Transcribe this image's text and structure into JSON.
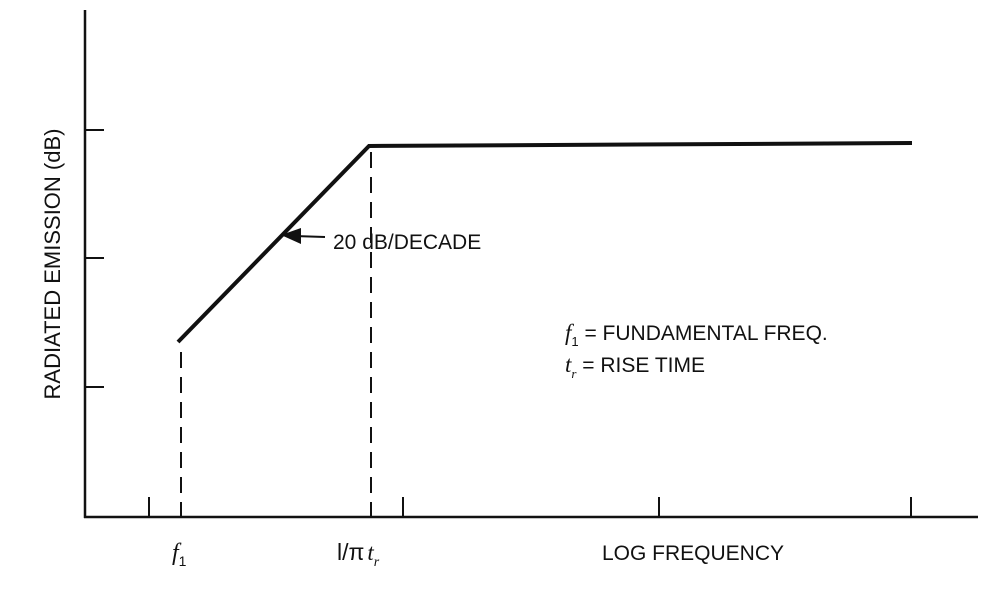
{
  "chart_data": {
    "type": "line",
    "ylabel": "RADIATED EMISSION (dB)",
    "xlabel": "LOG FREQUENCY",
    "x_ticks": {
      "f1": {
        "main": "f",
        "sub": "1"
      },
      "corner": {
        "main": "l/π",
        "ital": "t",
        "sub": "r"
      }
    },
    "slope_annotation": "20 dB/DECADE",
    "legend": {
      "line1": {
        "sym": "f",
        "sub": "1",
        "text": " = FUNDAMENTAL FREQ."
      },
      "line2": {
        "sym": "t",
        "sub": "r",
        "text": " = RISE TIME"
      }
    },
    "series": [
      {
        "points": [
          [
            0,
            0
          ],
          [
            1,
            20
          ],
          [
            3.2,
            20
          ]
        ]
      }
    ],
    "grid": false
  },
  "colors": {
    "ink": "#111111",
    "background": "#ffffff"
  }
}
